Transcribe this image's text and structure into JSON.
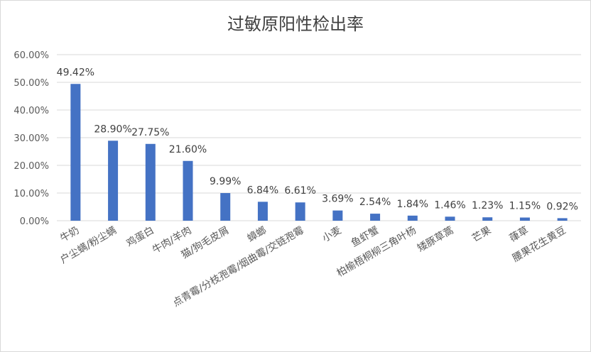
{
  "chart_data": {
    "type": "bar",
    "title": "过敏原阳性检出率",
    "categories": [
      "牛奶",
      "户尘螨/粉尘螨",
      "鸡蛋白",
      "牛肉/羊肉",
      "猫/狗毛皮屑",
      "蟑螂",
      "点青霉/分枝孢霉/烟曲霉/交链孢霉",
      "小麦",
      "鱼虾蟹",
      "柏榆梧桐柳三角叶杨",
      "矮豚草蒿",
      "芒果",
      "葎草",
      "腰果花生黄豆"
    ],
    "values": [
      49.42,
      28.9,
      27.75,
      21.6,
      9.99,
      6.84,
      6.61,
      3.69,
      2.54,
      1.84,
      1.46,
      1.23,
      1.15,
      0.92
    ],
    "value_labels": [
      "49.42%",
      "28.90%",
      "27.75%",
      "21.60%",
      "9.99%",
      "6.84%",
      "6.61%",
      "3.69%",
      "2.54%",
      "1.84%",
      "1.46%",
      "1.23%",
      "1.15%",
      "0.92%"
    ],
    "y_ticks": [
      "0.00%",
      "10.00%",
      "20.00%",
      "30.00%",
      "40.00%",
      "50.00%",
      "60.00%"
    ],
    "ylim": [
      0,
      60
    ],
    "grid": true,
    "legend": "none",
    "bar_color": "#4472c4",
    "grid_color": "#d9d9d9",
    "text_color": "#595959"
  }
}
